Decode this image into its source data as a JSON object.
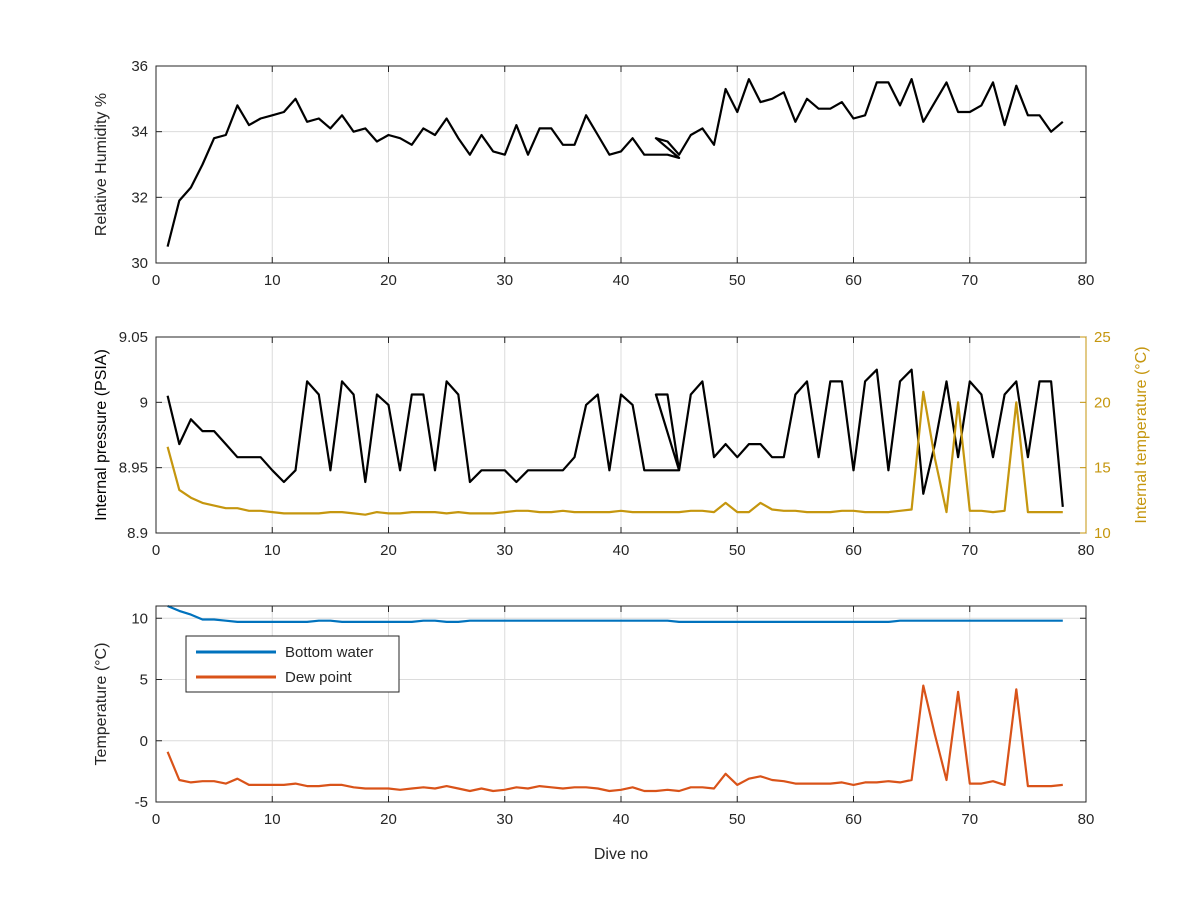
{
  "chart_data": [
    {
      "type": "line",
      "title": "",
      "xlabel": "",
      "ylabel": "Relative Humidity %",
      "xlim": [
        0,
        80
      ],
      "ylim": [
        30,
        36
      ],
      "xticks": [
        0,
        10,
        20,
        30,
        40,
        50,
        60,
        70,
        80
      ],
      "yticks": [
        30,
        32,
        34,
        36
      ],
      "grid": true,
      "series": [
        {
          "color": "#000000",
          "x": [
            1,
            2,
            3,
            4,
            5,
            6,
            7,
            8,
            9,
            10,
            11,
            12,
            13,
            14,
            15,
            16,
            17,
            18,
            19,
            20,
            21,
            22,
            23,
            24,
            25,
            26,
            27,
            28,
            29,
            30,
            31,
            32,
            33,
            34,
            35,
            36,
            37,
            38,
            39,
            40,
            41,
            42,
            43,
            44,
            45,
            43,
            44,
            45,
            46,
            47,
            48,
            49,
            50,
            51,
            52,
            53,
            54,
            55,
            56,
            57,
            58,
            59,
            60,
            61,
            62,
            63,
            64,
            65,
            66,
            67,
            68,
            69,
            70,
            71,
            72,
            73,
            74,
            75,
            76,
            77,
            78
          ],
          "y": [
            30.5,
            31.9,
            32.3,
            33.0,
            33.8,
            33.9,
            34.8,
            34.2,
            34.4,
            34.5,
            34.6,
            35.0,
            34.3,
            34.4,
            34.1,
            34.5,
            34.0,
            34.1,
            33.7,
            33.9,
            33.8,
            33.6,
            34.1,
            33.9,
            34.4,
            33.8,
            33.3,
            33.9,
            33.4,
            33.3,
            34.2,
            33.3,
            34.1,
            34.1,
            33.6,
            33.6,
            34.5,
            33.9,
            33.3,
            33.4,
            33.8,
            33.3,
            33.3,
            33.3,
            33.2,
            33.8,
            33.7,
            33.3,
            33.9,
            34.1,
            33.6,
            35.3,
            34.6,
            35.6,
            34.9,
            35.0,
            35.2,
            34.3,
            35.0,
            34.7,
            34.7,
            34.9,
            34.4,
            34.5,
            35.5,
            35.5,
            34.8,
            35.6,
            34.3,
            34.9,
            35.5,
            34.6,
            34.6,
            34.8,
            35.5,
            34.2,
            35.4,
            34.5,
            34.5,
            34.0,
            34.3
          ]
        }
      ]
    },
    {
      "type": "line",
      "title": "",
      "xlabel": "",
      "ylabel": "Internal pressure (PSIA)",
      "ylabel_right": "Internal temperature (°C)",
      "xlim": [
        0,
        80
      ],
      "ylim": [
        8.9,
        9.05
      ],
      "ylim_right": [
        10,
        25
      ],
      "xticks": [
        0,
        10,
        20,
        30,
        40,
        50,
        60,
        70,
        80
      ],
      "yticks": [
        8.9,
        8.95,
        9,
        9.05
      ],
      "yticks_labels": [
        "8.9",
        "8.95",
        "9",
        "9.05"
      ],
      "yticks_right": [
        10,
        15,
        20,
        25
      ],
      "grid": true,
      "series": [
        {
          "axis": "left",
          "color": "#000000",
          "x": [
            1,
            2,
            3,
            4,
            5,
            6,
            7,
            8,
            9,
            10,
            11,
            12,
            13,
            14,
            15,
            16,
            17,
            18,
            19,
            20,
            21,
            22,
            23,
            24,
            25,
            26,
            27,
            28,
            29,
            30,
            31,
            32,
            33,
            34,
            35,
            36,
            37,
            38,
            39,
            40,
            41,
            42,
            43,
            44,
            45,
            43,
            44,
            45,
            46,
            47,
            48,
            49,
            50,
            51,
            52,
            53,
            54,
            55,
            56,
            57,
            58,
            59,
            60,
            61,
            62,
            63,
            64,
            65,
            66,
            67,
            68,
            69,
            70,
            71,
            72,
            73,
            74,
            75,
            76,
            77,
            78
          ],
          "y": [
            9.005,
            8.968,
            8.987,
            8.978,
            8.978,
            8.968,
            8.958,
            8.958,
            8.958,
            8.948,
            8.939,
            8.948,
            9.016,
            9.006,
            8.948,
            9.016,
            9.006,
            8.939,
            9.006,
            8.998,
            8.948,
            9.006,
            9.006,
            8.948,
            9.016,
            9.006,
            8.939,
            8.948,
            8.948,
            8.948,
            8.939,
            8.948,
            8.948,
            8.948,
            8.948,
            8.958,
            8.998,
            9.006,
            8.948,
            9.006,
            8.998,
            8.948,
            8.948,
            8.948,
            8.948,
            9.006,
            9.006,
            8.948,
            9.006,
            9.016,
            8.958,
            8.968,
            8.958,
            8.968,
            8.968,
            8.958,
            8.958,
            9.006,
            9.016,
            8.958,
            9.016,
            9.016,
            8.948,
            9.016,
            9.025,
            8.948,
            9.016,
            9.025,
            8.93,
            8.968,
            9.016,
            8.958,
            9.016,
            9.006,
            8.958,
            9.006,
            9.016,
            8.958,
            9.016,
            9.016,
            8.92
          ]
        },
        {
          "axis": "right",
          "color": "#c5960e",
          "x": [
            1,
            2,
            3,
            4,
            5,
            6,
            7,
            8,
            9,
            10,
            11,
            12,
            13,
            14,
            15,
            16,
            17,
            18,
            19,
            20,
            21,
            22,
            23,
            24,
            25,
            26,
            27,
            28,
            29,
            30,
            31,
            32,
            33,
            34,
            35,
            36,
            37,
            38,
            39,
            40,
            41,
            42,
            43,
            44,
            45,
            46,
            47,
            48,
            49,
            50,
            51,
            52,
            53,
            54,
            55,
            56,
            57,
            58,
            59,
            60,
            61,
            62,
            63,
            64,
            65,
            66,
            67,
            68,
            69,
            70,
            71,
            72,
            73,
            74,
            75,
            76,
            77,
            78
          ],
          "y": [
            16.6,
            13.3,
            12.7,
            12.3,
            12.1,
            11.9,
            11.9,
            11.7,
            11.7,
            11.6,
            11.5,
            11.5,
            11.5,
            11.5,
            11.6,
            11.6,
            11.5,
            11.4,
            11.6,
            11.5,
            11.5,
            11.6,
            11.6,
            11.6,
            11.5,
            11.6,
            11.5,
            11.5,
            11.5,
            11.6,
            11.7,
            11.7,
            11.6,
            11.6,
            11.7,
            11.6,
            11.6,
            11.6,
            11.6,
            11.7,
            11.6,
            11.6,
            11.6,
            11.6,
            11.6,
            11.7,
            11.7,
            11.6,
            12.3,
            11.6,
            11.6,
            12.3,
            11.8,
            11.7,
            11.7,
            11.6,
            11.6,
            11.6,
            11.7,
            11.7,
            11.6,
            11.6,
            11.6,
            11.7,
            11.8,
            20.8,
            15.7,
            11.6,
            20.0,
            11.7,
            11.7,
            11.6,
            11.7,
            20.0,
            11.6,
            11.6,
            11.6,
            11.6
          ]
        }
      ]
    },
    {
      "type": "line",
      "title": "",
      "xlabel": "Dive no",
      "ylabel": "Temperature (°C)",
      "xlim": [
        0,
        80
      ],
      "ylim": [
        -5,
        11
      ],
      "xticks": [
        0,
        10,
        20,
        30,
        40,
        50,
        60,
        70,
        80
      ],
      "yticks": [
        -5,
        0,
        5,
        10
      ],
      "grid": true,
      "legend": {
        "position": "upper-left",
        "entries": [
          "Bottom water",
          "Dew point"
        ]
      },
      "series": [
        {
          "name": "Bottom water",
          "color": "#0072bd",
          "x": [
            1,
            2,
            3,
            4,
            5,
            6,
            7,
            8,
            9,
            10,
            11,
            12,
            13,
            14,
            15,
            16,
            17,
            18,
            19,
            20,
            21,
            22,
            23,
            24,
            25,
            26,
            27,
            28,
            29,
            30,
            31,
            32,
            33,
            34,
            35,
            36,
            37,
            38,
            39,
            40,
            41,
            42,
            43,
            44,
            45,
            46,
            47,
            48,
            49,
            50,
            51,
            52,
            53,
            54,
            55,
            56,
            57,
            58,
            59,
            60,
            61,
            62,
            63,
            64,
            65,
            66,
            67,
            68,
            69,
            70,
            71,
            72,
            73,
            74,
            75,
            76,
            77,
            78
          ],
          "y": [
            11.0,
            10.6,
            10.3,
            9.9,
            9.9,
            9.8,
            9.7,
            9.7,
            9.7,
            9.7,
            9.7,
            9.7,
            9.7,
            9.8,
            9.8,
            9.7,
            9.7,
            9.7,
            9.7,
            9.7,
            9.7,
            9.7,
            9.8,
            9.8,
            9.7,
            9.7,
            9.8,
            9.8,
            9.8,
            9.8,
            9.8,
            9.8,
            9.8,
            9.8,
            9.8,
            9.8,
            9.8,
            9.8,
            9.8,
            9.8,
            9.8,
            9.8,
            9.8,
            9.8,
            9.7,
            9.7,
            9.7,
            9.7,
            9.7,
            9.7,
            9.7,
            9.7,
            9.7,
            9.7,
            9.7,
            9.7,
            9.7,
            9.7,
            9.7,
            9.7,
            9.7,
            9.7,
            9.7,
            9.8,
            9.8,
            9.8,
            9.8,
            9.8,
            9.8,
            9.8,
            9.8,
            9.8,
            9.8,
            9.8,
            9.8,
            9.8,
            9.8,
            9.8
          ]
        },
        {
          "name": "Dew point",
          "color": "#d95319",
          "x": [
            1,
            2,
            3,
            4,
            5,
            6,
            7,
            8,
            9,
            10,
            11,
            12,
            13,
            14,
            15,
            16,
            17,
            18,
            19,
            20,
            21,
            22,
            23,
            24,
            25,
            26,
            27,
            28,
            29,
            30,
            31,
            32,
            33,
            34,
            35,
            36,
            37,
            38,
            39,
            40,
            41,
            42,
            43,
            44,
            45,
            46,
            47,
            48,
            49,
            50,
            51,
            52,
            53,
            54,
            55,
            56,
            57,
            58,
            59,
            60,
            61,
            62,
            63,
            64,
            65,
            66,
            67,
            68,
            69,
            70,
            71,
            72,
            73,
            74,
            75,
            76,
            77,
            78
          ],
          "y": [
            -0.9,
            -3.2,
            -3.4,
            -3.3,
            -3.3,
            -3.5,
            -3.1,
            -3.6,
            -3.6,
            -3.6,
            -3.6,
            -3.5,
            -3.7,
            -3.7,
            -3.6,
            -3.6,
            -3.8,
            -3.9,
            -3.9,
            -3.9,
            -4.0,
            -3.9,
            -3.8,
            -3.9,
            -3.7,
            -3.9,
            -4.1,
            -3.9,
            -4.1,
            -4.0,
            -3.8,
            -3.9,
            -3.7,
            -3.8,
            -3.9,
            -3.8,
            -3.8,
            -3.9,
            -4.1,
            -4.0,
            -3.8,
            -4.1,
            -4.1,
            -4.0,
            -4.1,
            -3.8,
            -3.8,
            -3.9,
            -2.7,
            -3.6,
            -3.1,
            -2.9,
            -3.2,
            -3.3,
            -3.5,
            -3.5,
            -3.5,
            -3.5,
            -3.4,
            -3.6,
            -3.4,
            -3.4,
            -3.3,
            -3.4,
            -3.2,
            4.5,
            0.5,
            -3.2,
            4.0,
            -3.5,
            -3.5,
            -3.3,
            -3.6,
            4.2,
            -3.7,
            -3.7,
            -3.7,
            -3.6
          ]
        }
      ]
    }
  ]
}
